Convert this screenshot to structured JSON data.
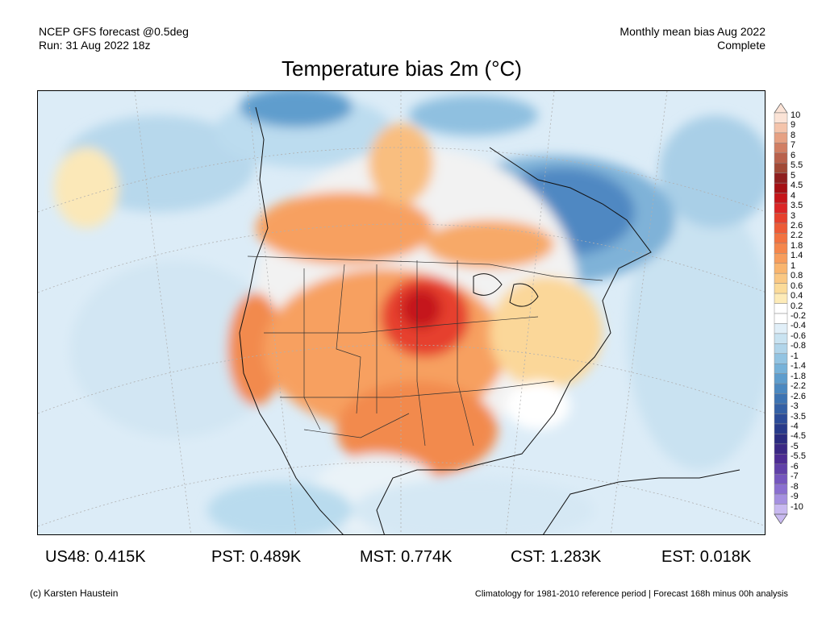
{
  "header": {
    "left_line1": "NCEP GFS forecast @0.5deg",
    "left_line2": "Run: 31 Aug 2022 18z",
    "right_line1": "Monthly mean bias Aug 2022",
    "right_line2": "Complete"
  },
  "title": "Temperature bias 2m (°C)",
  "colorbar": {
    "labels": [
      "10",
      "9",
      "8",
      "7",
      "6",
      "5.5",
      "5",
      "4.5",
      "4",
      "3.5",
      "3",
      "2.6",
      "2.2",
      "1.8",
      "1.4",
      "1",
      "0.8",
      "0.6",
      "0.4",
      "0.2",
      "-0.2",
      "-0.4",
      "-0.6",
      "-0.8",
      "-1",
      "-1.4",
      "-1.8",
      "-2.2",
      "-2.6",
      "-3",
      "-3.5",
      "-4",
      "-4.5",
      "-5",
      "-5.5",
      "-6",
      "-7",
      "-8",
      "-9",
      "-10"
    ],
    "colors": [
      "#fbe3d6",
      "#f4c4ab",
      "#e6a183",
      "#d17e63",
      "#b9614c",
      "#a14936",
      "#8f1f1f",
      "#a51014",
      "#c5151a",
      "#db2526",
      "#e6402d",
      "#ed5a36",
      "#f27240",
      "#f5864b",
      "#f79d5c",
      "#f9b56e",
      "#fac883",
      "#fbdb99",
      "#fdebb8",
      "#ffffff",
      "#ffffff",
      "#e1eff8",
      "#c9e3f1",
      "#b1d5ea",
      "#93c4e2",
      "#77b2d9",
      "#5e9dcd",
      "#4b88c0",
      "#3d73b2",
      "#3460a5",
      "#2c4b98",
      "#283a8a",
      "#2b2b7f",
      "#3a2884",
      "#4d2c93",
      "#6040a8",
      "#7556be",
      "#8a6fd0",
      "#a590e0",
      "#c8b9f0"
    ]
  },
  "stats": [
    {
      "label": "US48: 0.415K"
    },
    {
      "label": "PST: 0.489K"
    },
    {
      "label": "MST: 0.774K"
    },
    {
      "label": "CST: 1.283K"
    },
    {
      "label": "EST: 0.018K"
    }
  ],
  "footer": {
    "left": "(c) Karsten Haustein",
    "right": "Climatology for 1981-2010 reference period | Forecast 168h minus 00h analysis"
  }
}
